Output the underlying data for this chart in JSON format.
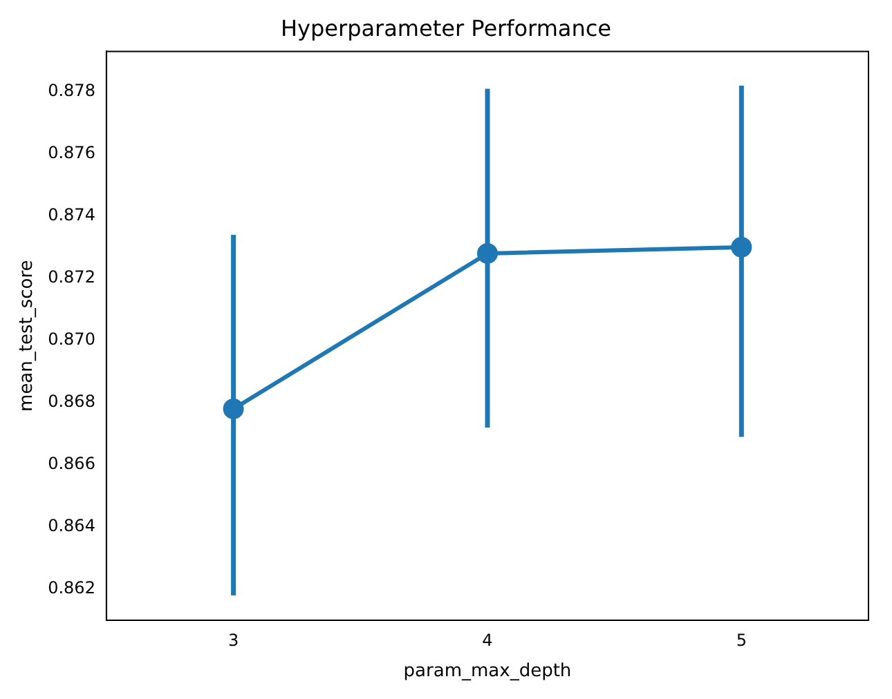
{
  "chart_data": {
    "type": "line",
    "title": "Hyperparameter Performance",
    "xlabel": "param_max_depth",
    "ylabel": "mean_test_score",
    "categories": [
      "3",
      "4",
      "5"
    ],
    "series": [
      {
        "color": "#1f77b4",
        "values": [
          0.8678,
          0.8728,
          0.873
        ],
        "errors": [
          [
            0.8618,
            0.8734
          ],
          [
            0.8672,
            0.8781
          ],
          [
            0.8669,
            0.8782
          ]
        ]
      }
    ],
    "ylim": [
      0.861,
      0.8793
    ],
    "yticks": [
      0.862,
      0.864,
      0.866,
      0.868,
      {
        "value": 0.87,
        "label": "0.870"
      },
      0.872,
      0.874,
      0.876,
      0.878
    ],
    "grid": false,
    "legend": false,
    "marker": "circle",
    "line_style": "solid"
  }
}
